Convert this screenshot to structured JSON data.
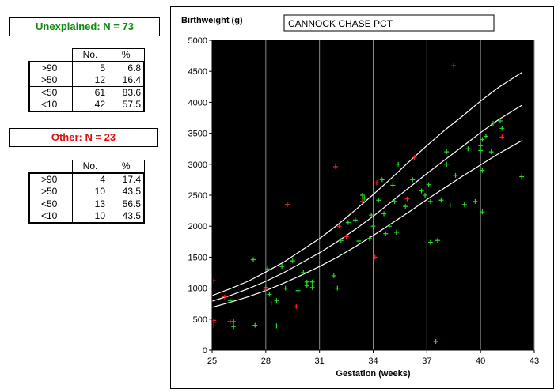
{
  "left_panel": {
    "unexplained": {
      "title": "Unexplained: N = 73",
      "title_color": "#118a11",
      "headers": [
        "No.",
        "%"
      ],
      "rows": [
        {
          "label": ">90",
          "no": "5",
          "pct": "6.8"
        },
        {
          "label": ">50",
          "no": "12",
          "pct": "16.4"
        },
        {
          "label": "<50",
          "no": "61",
          "pct": "83.6"
        },
        {
          "label": "<10",
          "no": "42",
          "pct": "57.5"
        }
      ]
    },
    "other": {
      "title": "Other: N = 23",
      "title_color": "#e01010",
      "headers": [
        "No.",
        "%"
      ],
      "rows": [
        {
          "label": ">90",
          "no": "4",
          "pct": "17.4"
        },
        {
          "label": ">50",
          "no": "10",
          "pct": "43.5"
        },
        {
          "label": "<50",
          "no": "13",
          "pct": "56.5"
        },
        {
          "label": "<10",
          "no": "10",
          "pct": "43.5"
        }
      ]
    }
  },
  "chart_data": {
    "type": "scatter",
    "title": "CANNOCK CHASE PCT",
    "xlabel": "Gestation (weeks)",
    "ylabel": "Birthweight (g)",
    "xlim": [
      25,
      43
    ],
    "ylim": [
      0,
      5000
    ],
    "xticks": [
      25,
      28,
      31,
      34,
      37,
      40,
      43
    ],
    "yticks": [
      0,
      500,
      1000,
      1500,
      2000,
      2500,
      3000,
      3500,
      4000,
      4500,
      5000
    ],
    "vertical_grid": true,
    "plot_background": "#000000",
    "curve_color": "#ffffff",
    "curves": [
      {
        "x": [
          25,
          26,
          27,
          28,
          29,
          30,
          31,
          32,
          33,
          34,
          35,
          36,
          37,
          38,
          39,
          40,
          41,
          42.3
        ],
        "y": [
          880,
          990,
          1110,
          1260,
          1420,
          1610,
          1800,
          2020,
          2260,
          2510,
          2770,
          3040,
          3300,
          3550,
          3780,
          4020,
          4240,
          4480
        ]
      },
      {
        "x": [
          25,
          26,
          27,
          28,
          29,
          30,
          31,
          32,
          33,
          34,
          35,
          36,
          37,
          38,
          39,
          40,
          41,
          42.3
        ],
        "y": [
          790,
          880,
          990,
          1110,
          1250,
          1410,
          1570,
          1750,
          1950,
          2160,
          2390,
          2620,
          2850,
          3070,
          3290,
          3510,
          3720,
          3950
        ]
      },
      {
        "x": [
          25,
          26,
          27,
          28,
          29,
          30,
          31,
          32,
          33,
          34,
          35,
          36,
          37,
          38,
          39,
          40,
          41,
          42.3
        ],
        "y": [
          690,
          770,
          860,
          960,
          1080,
          1210,
          1350,
          1500,
          1670,
          1850,
          2040,
          2230,
          2430,
          2620,
          2810,
          2990,
          3170,
          3380
        ]
      }
    ],
    "series": [
      {
        "color": "#22dd22",
        "points": [
          [
            26.0,
            800
          ],
          [
            26.0,
            460
          ],
          [
            26.2,
            460
          ],
          [
            26.2,
            380
          ],
          [
            27.3,
            1460
          ],
          [
            27.4,
            400
          ],
          [
            28.0,
            1010
          ],
          [
            28.1,
            1310
          ],
          [
            28.2,
            900
          ],
          [
            28.3,
            760
          ],
          [
            28.6,
            800
          ],
          [
            28.6,
            390
          ],
          [
            28.9,
            1350
          ],
          [
            29.1,
            1000
          ],
          [
            29.5,
            1440
          ],
          [
            29.8,
            960
          ],
          [
            30.1,
            1250
          ],
          [
            30.3,
            1100
          ],
          [
            30.3,
            1040
          ],
          [
            30.6,
            1100
          ],
          [
            30.6,
            1010
          ],
          [
            31.8,
            1200
          ],
          [
            32.0,
            1000
          ],
          [
            32.2,
            1770
          ],
          [
            32.6,
            2060
          ],
          [
            33.0,
            2100
          ],
          [
            33.2,
            1760
          ],
          [
            33.4,
            2500
          ],
          [
            33.5,
            2450
          ],
          [
            33.8,
            1800
          ],
          [
            33.9,
            2180
          ],
          [
            34.0,
            2000
          ],
          [
            34.3,
            2420
          ],
          [
            34.5,
            2750
          ],
          [
            34.6,
            2200
          ],
          [
            34.7,
            1880
          ],
          [
            34.9,
            2000
          ],
          [
            35.1,
            2660
          ],
          [
            35.2,
            2400
          ],
          [
            35.3,
            1900
          ],
          [
            35.4,
            3000
          ],
          [
            35.8,
            2320
          ],
          [
            36.2,
            2750
          ],
          [
            36.7,
            2570
          ],
          [
            36.9,
            2500
          ],
          [
            37.1,
            2670
          ],
          [
            37.2,
            1740
          ],
          [
            37.2,
            2400
          ],
          [
            37.5,
            140
          ],
          [
            37.6,
            1770
          ],
          [
            37.8,
            2420
          ],
          [
            38.1,
            3200
          ],
          [
            38.1,
            3000
          ],
          [
            38.3,
            2340
          ],
          [
            38.6,
            2820
          ],
          [
            39.1,
            2350
          ],
          [
            39.3,
            3250
          ],
          [
            39.7,
            2400
          ],
          [
            40.0,
            3300
          ],
          [
            40.0,
            3220
          ],
          [
            40.1,
            3400
          ],
          [
            40.1,
            2900
          ],
          [
            40.1,
            2230
          ],
          [
            40.3,
            3450
          ],
          [
            40.6,
            3200
          ],
          [
            40.7,
            3660
          ],
          [
            41.1,
            3700
          ],
          [
            41.2,
            3580
          ],
          [
            42.3,
            2800
          ]
        ]
      },
      {
        "color": "#ff2222",
        "points": [
          [
            25.1,
            1120
          ],
          [
            25.1,
            480
          ],
          [
            25.1,
            450
          ],
          [
            25.1,
            390
          ],
          [
            25.7,
            860
          ],
          [
            26.0,
            460
          ],
          [
            28.0,
            980
          ],
          [
            29.2,
            2350
          ],
          [
            29.7,
            700
          ],
          [
            31.9,
            2960
          ],
          [
            32.1,
            2000
          ],
          [
            32.5,
            1830
          ],
          [
            33.4,
            2400
          ],
          [
            34.1,
            1500
          ],
          [
            34.2,
            2700
          ],
          [
            35.9,
            2440
          ],
          [
            36.3,
            3110
          ],
          [
            38.5,
            4590
          ],
          [
            41.2,
            3440
          ]
        ]
      }
    ]
  }
}
